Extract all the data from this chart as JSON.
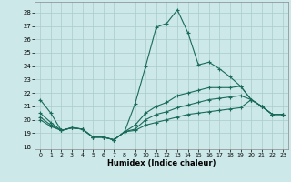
{
  "xlabel": "Humidex (Indice chaleur)",
  "bg_color": "#cce8e8",
  "grid_color": "#aacccc",
  "line_color": "#1a6b5a",
  "xlim": [
    -0.5,
    23.5
  ],
  "ylim": [
    17.8,
    28.8
  ],
  "line1": [
    21.5,
    20.5,
    19.2,
    19.4,
    19.3,
    18.7,
    18.7,
    18.5,
    19.1,
    21.2,
    24.0,
    26.9,
    27.2,
    28.2,
    26.5,
    24.1,
    24.3,
    23.8,
    23.2,
    22.5,
    21.5,
    21.0,
    20.4,
    20.4
  ],
  "line2": [
    20.5,
    19.8,
    19.2,
    19.4,
    19.3,
    18.7,
    18.7,
    18.5,
    19.1,
    19.6,
    20.5,
    21.0,
    21.3,
    21.8,
    22.0,
    22.2,
    22.4,
    22.4,
    22.4,
    22.5,
    21.5,
    21.0,
    20.4,
    20.4
  ],
  "line3": [
    20.2,
    19.6,
    19.2,
    19.4,
    19.3,
    18.7,
    18.7,
    18.5,
    19.1,
    19.3,
    20.0,
    20.4,
    20.6,
    20.9,
    21.1,
    21.3,
    21.5,
    21.6,
    21.7,
    21.8,
    21.5,
    21.0,
    20.4,
    20.4
  ],
  "line4": [
    20.0,
    19.5,
    19.2,
    19.4,
    19.3,
    18.7,
    18.7,
    18.5,
    19.1,
    19.2,
    19.6,
    19.8,
    20.0,
    20.2,
    20.4,
    20.5,
    20.6,
    20.7,
    20.8,
    20.9,
    21.5,
    21.0,
    20.4,
    20.4
  ],
  "figsize": [
    3.2,
    2.0
  ],
  "dpi": 100
}
